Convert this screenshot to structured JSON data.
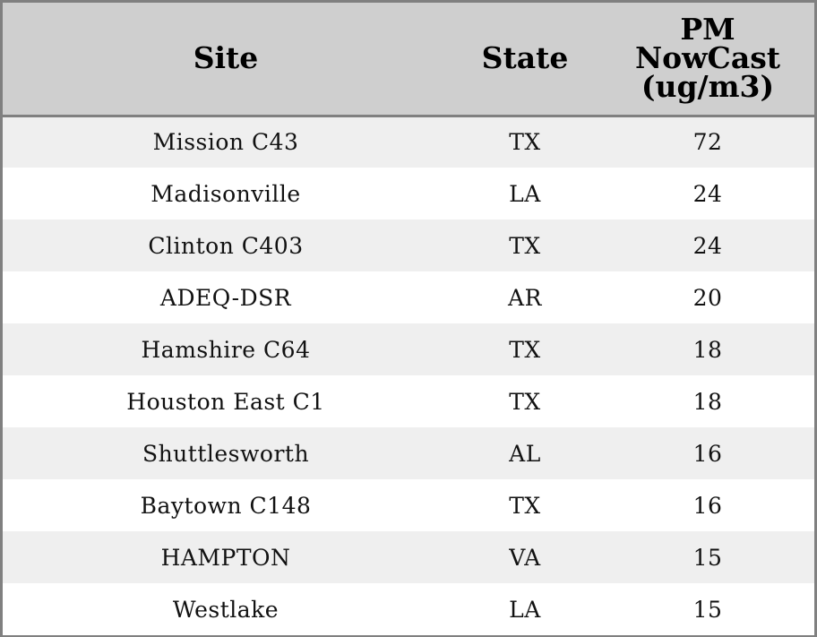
{
  "chart_data": {
    "type": "table",
    "columns": [
      "Site",
      "State",
      [
        "PM",
        "NowCast",
        "(ug/m3)"
      ]
    ],
    "rows": [
      {
        "site": "Mission C43",
        "state": "TX",
        "pm": 72
      },
      {
        "site": "Madisonville",
        "state": "LA",
        "pm": 24
      },
      {
        "site": "Clinton C403",
        "state": "TX",
        "pm": 24
      },
      {
        "site": "ADEQ-DSR",
        "state": "AR",
        "pm": 20
      },
      {
        "site": "Hamshire C64",
        "state": "TX",
        "pm": 18
      },
      {
        "site": "Houston East C1",
        "state": "TX",
        "pm": 18
      },
      {
        "site": "Shuttlesworth",
        "state": "AL",
        "pm": 16
      },
      {
        "site": "Baytown C148",
        "state": "TX",
        "pm": 16
      },
      {
        "site": "HAMPTON",
        "state": "VA",
        "pm": 15
      },
      {
        "site": "Westlake",
        "state": "LA",
        "pm": 15
      }
    ],
    "colors": {
      "header_bg": "#cfcfcf",
      "stripe_bg": "#efefef",
      "row_bg": "#ffffff",
      "border": "#808080"
    }
  }
}
